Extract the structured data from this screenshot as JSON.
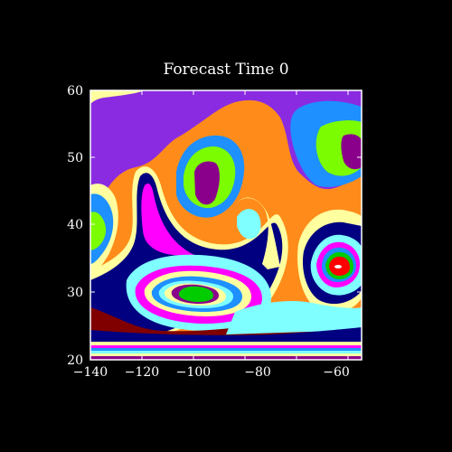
{
  "plot": {
    "title": "Forecast Time 0",
    "x_tick_labels": [
      "−140",
      "−120",
      "−100",
      "−80",
      "−60"
    ],
    "y_tick_labels": [
      "20",
      "30",
      "40",
      "50",
      "60"
    ]
  },
  "colors": {
    "background": "#000000",
    "frame": "#ffffff",
    "violet": "#8a2be2",
    "orange": "#ff8c1a",
    "blue": "#1e90ff",
    "lime": "#7cfc00",
    "purple": "#8b008b",
    "white": "#ffffff",
    "cream": "#ffffa0",
    "cyan": "#7fffff",
    "navy": "#000080",
    "magenta": "#ff00ff",
    "maroon": "#800000",
    "green": "#00cc00",
    "red": "#ff0000"
  }
}
